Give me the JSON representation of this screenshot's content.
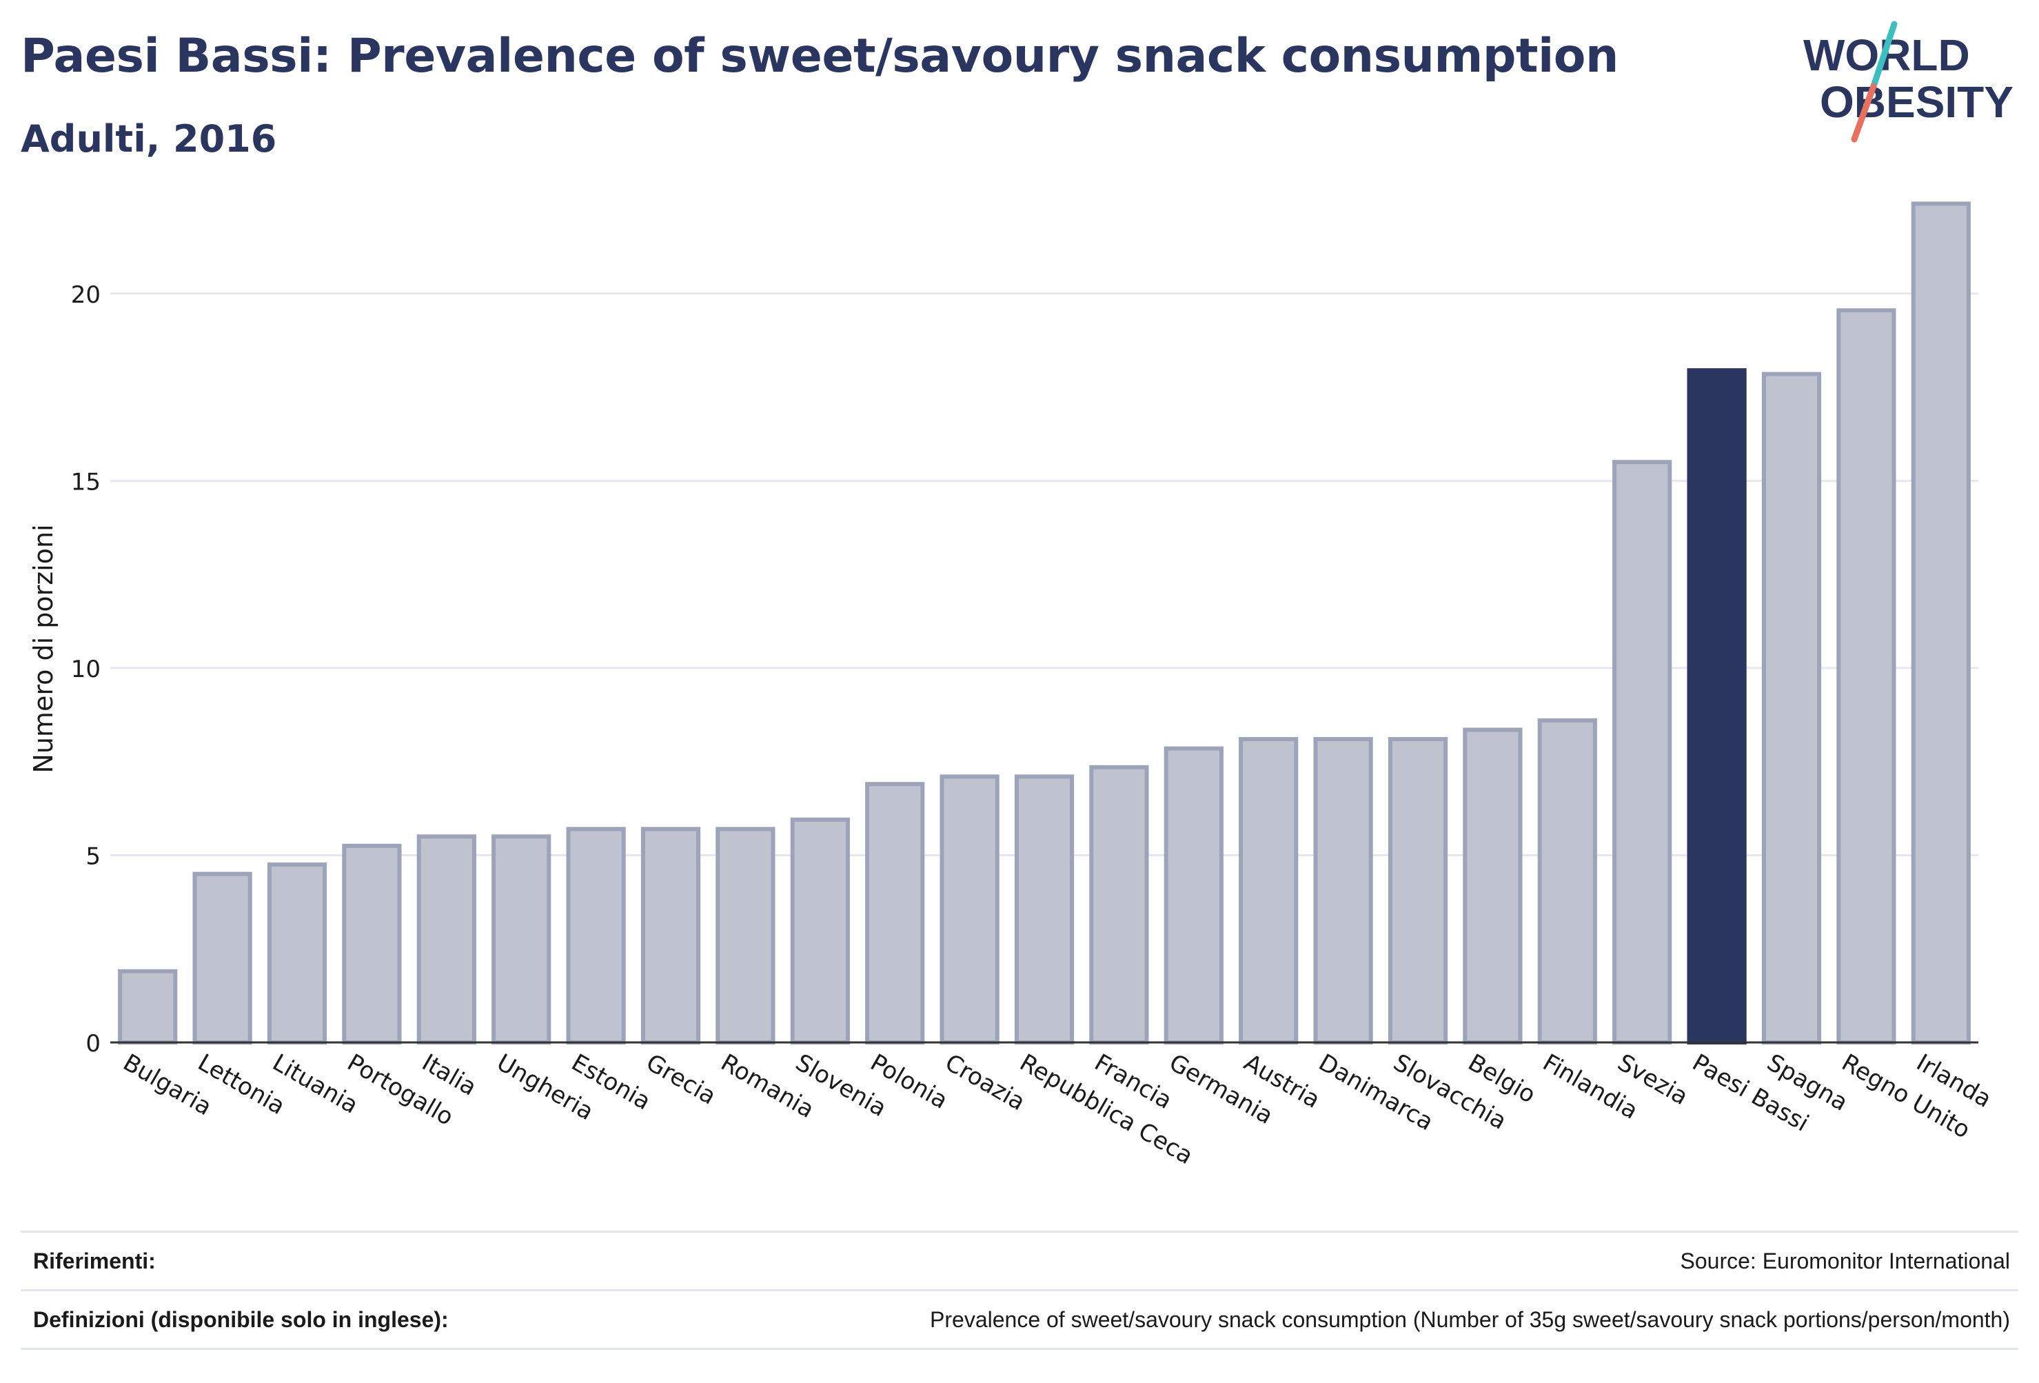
{
  "header": {
    "title": "Paesi Bassi: Prevalence of sweet/savoury snack consumption",
    "subtitle": "Adulti, 2016"
  },
  "logo": {
    "line1": "WORLD",
    "line2": "OBESITY",
    "accent_colors": [
      "#3bbfbf",
      "#e8705f"
    ]
  },
  "colors": {
    "highlight_bar": "#2b3660",
    "default_bar_fill": "#bfc3d0",
    "default_bar_stroke": "#9da3b8",
    "gridline": "#e6e8ee",
    "axis_text": "#1a1a1a"
  },
  "chart_data": {
    "type": "bar",
    "title": "",
    "xlabel": "",
    "ylabel": "Numero di porzioni",
    "ylim": [
      0,
      22.5
    ],
    "yticks": [
      0,
      5,
      10,
      15,
      20
    ],
    "grid": true,
    "highlight": "Paesi Bassi",
    "categories": [
      "Bulgaria",
      "Lettonia",
      "Lituania",
      "Portogallo",
      "Italia",
      "Ungheria",
      "Estonia",
      "Grecia",
      "Romania",
      "Slovenia",
      "Polonia",
      "Croazia",
      "Repubblica Ceca",
      "Francia",
      "Germania",
      "Austria",
      "Danimarca",
      "Slovacchia",
      "Belgio",
      "Finlandia",
      "Svezia",
      "Paesi Bassi",
      "Spagna",
      "Regno Unito",
      "Irlanda"
    ],
    "values": [
      1.9,
      4.5,
      4.75,
      5.25,
      5.5,
      5.5,
      5.7,
      5.7,
      5.7,
      5.95,
      6.9,
      7.1,
      7.1,
      7.35,
      7.85,
      8.1,
      8.1,
      8.1,
      8.35,
      8.6,
      15.5,
      17.95,
      17.85,
      19.55,
      22.4
    ]
  },
  "footer": {
    "references_label": "Riferimenti:",
    "references_value": "Source: Euromonitor International",
    "definitions_label": "Definizioni (disponibile solo in inglese):",
    "definitions_value": "Prevalence of sweet/savoury snack consumption (Number of 35g sweet/savoury snack portions/person/month)"
  }
}
